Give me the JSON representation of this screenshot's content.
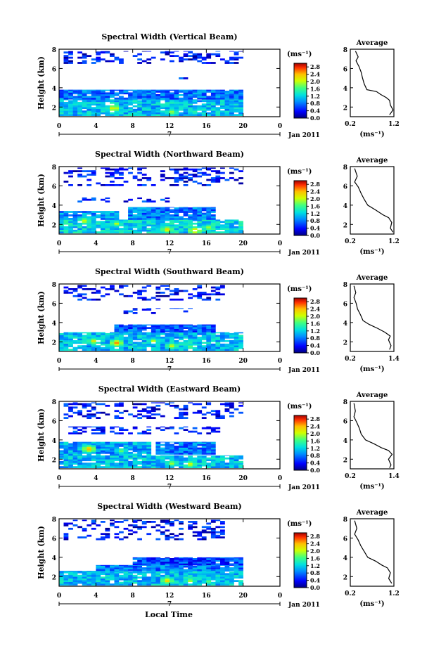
{
  "xlabel": "Local Time",
  "chart_data": [
    {
      "type": "heatmap",
      "title": "Spectral Width (Vertical Beam)",
      "ylabel": "Height (km)",
      "xlim": [
        0,
        24
      ],
      "ylim": [
        1,
        8
      ],
      "x_ticks": [
        "0",
        "4",
        "8",
        "12",
        "16",
        "20",
        "0"
      ],
      "x_tick_values": [
        0,
        4,
        8,
        12,
        16,
        20,
        24
      ],
      "y_ticks": [
        "2",
        "4",
        "6",
        "8"
      ],
      "date_label": "7",
      "date_suffix": "Jan 2011",
      "colorbar": {
        "label": "(ms⁻¹)",
        "ticks": [
          "0.0",
          "0.4",
          "0.8",
          "1.2",
          "1.6",
          "2.0",
          "2.4",
          "2.8"
        ],
        "range": [
          0,
          3.0
        ]
      },
      "layers": [
        {
          "x": [
            0,
            20
          ],
          "y": [
            1.1,
            2.8
          ],
          "v": 1.1
        },
        {
          "x": [
            0,
            20
          ],
          "y": [
            2.8,
            3.8
          ],
          "v": 0.8
        },
        {
          "x": [
            0.5,
            20
          ],
          "y": [
            6.5,
            7.8
          ],
          "v": 0.4,
          "sparse": true
        },
        {
          "x": [
            13,
            14.5
          ],
          "y": [
            4.9,
            5.2
          ],
          "v": 0.5,
          "sparse": true
        }
      ],
      "hotspots": [
        [
          5.7,
          1.8,
          2.4
        ],
        [
          12,
          1.4,
          2.0
        ],
        [
          14.5,
          1.4,
          1.6
        ],
        [
          8,
          1.2,
          1.4
        ]
      ],
      "profile": {
        "title": "Average",
        "xlabel": "(ms⁻¹)",
        "xlim": [
          0.2,
          1.2
        ],
        "x_ticks": [
          "0.2",
          "1.2"
        ],
        "y_ticks": [
          "2",
          "4",
          "6",
          "8"
        ],
        "ylim": [
          1,
          8
        ],
        "points": [
          [
            0.32,
            7.8
          ],
          [
            0.38,
            7.2
          ],
          [
            0.33,
            6.8
          ],
          [
            0.4,
            6.2
          ],
          [
            0.45,
            5.6
          ],
          [
            0.48,
            5.0
          ],
          [
            0.52,
            4.4
          ],
          [
            0.58,
            3.8
          ],
          [
            0.8,
            3.6
          ],
          [
            0.9,
            3.3
          ],
          [
            1.02,
            3.0
          ],
          [
            1.1,
            2.7
          ],
          [
            1.12,
            2.2
          ],
          [
            1.18,
            1.7
          ],
          [
            1.1,
            1.2
          ]
        ]
      }
    },
    {
      "type": "heatmap",
      "title": "Spectral Width (Northward Beam)",
      "ylabel": "Height (km)",
      "xlim": [
        0,
        24
      ],
      "ylim": [
        1,
        8
      ],
      "x_ticks": [
        "0",
        "4",
        "8",
        "12",
        "16",
        "20",
        "0"
      ],
      "x_tick_values": [
        0,
        4,
        8,
        12,
        16,
        20,
        24
      ],
      "y_ticks": [
        "2",
        "4",
        "6",
        "8"
      ],
      "date_label": "7",
      "date_suffix": "Jan 2011",
      "colorbar": {
        "label": "(ms⁻¹)",
        "ticks": [
          "0.0",
          "0.4",
          "0.8",
          "1.2",
          "1.6",
          "2.0",
          "2.4",
          "2.8"
        ],
        "range": [
          0,
          3.0
        ]
      },
      "layers": [
        {
          "x": [
            0,
            20
          ],
          "y": [
            1.1,
            2.5
          ],
          "v": 1.2
        },
        {
          "x": [
            0,
            6.5
          ],
          "y": [
            2.5,
            3.4
          ],
          "v": 0.9
        },
        {
          "x": [
            7.5,
            17
          ],
          "y": [
            2.5,
            3.8
          ],
          "v": 0.8
        },
        {
          "x": [
            0.5,
            20
          ],
          "y": [
            6.0,
            7.9
          ],
          "v": 0.4,
          "sparse": true
        },
        {
          "x": [
            2,
            12
          ],
          "y": [
            4.3,
            4.8
          ],
          "v": 0.5,
          "sparse": true
        }
      ],
      "hotspots": [
        [
          2.5,
          2.3,
          2.2
        ],
        [
          6,
          2.0,
          2.0
        ],
        [
          11.5,
          1.4,
          2.4
        ],
        [
          14.5,
          1.3,
          2.6
        ],
        [
          16,
          1.6,
          2.0
        ]
      ],
      "profile": {
        "title": "Average",
        "xlabel": "(ms⁻¹)",
        "xlim": [
          0.2,
          1.2
        ],
        "x_ticks": [
          "0.2",
          "1.2"
        ],
        "y_ticks": [
          "2",
          "4",
          "6",
          "8"
        ],
        "ylim": [
          1,
          8
        ],
        "points": [
          [
            0.3,
            7.8
          ],
          [
            0.36,
            7.0
          ],
          [
            0.3,
            6.4
          ],
          [
            0.38,
            5.9
          ],
          [
            0.45,
            5.2
          ],
          [
            0.52,
            4.6
          ],
          [
            0.6,
            4.0
          ],
          [
            0.78,
            3.5
          ],
          [
            0.95,
            3.0
          ],
          [
            1.08,
            2.7
          ],
          [
            1.15,
            2.2
          ],
          [
            1.12,
            1.6
          ],
          [
            1.18,
            1.2
          ]
        ]
      }
    },
    {
      "type": "heatmap",
      "title": "Spectral Width (Southward Beam)",
      "ylabel": "Height (km)",
      "xlim": [
        0,
        24
      ],
      "ylim": [
        1,
        8
      ],
      "x_ticks": [
        "0",
        "4",
        "8",
        "12",
        "16",
        "20",
        "0"
      ],
      "x_tick_values": [
        0,
        4,
        8,
        12,
        16,
        20,
        24
      ],
      "y_ticks": [
        "2",
        "4",
        "6",
        "8"
      ],
      "date_label": "7",
      "date_suffix": "Jan 2011",
      "colorbar": {
        "label": "(ms⁻¹)",
        "ticks": [
          "0.0",
          "0.4",
          "0.8",
          "1.2",
          "1.6",
          "2.0",
          "2.4",
          "2.8"
        ],
        "range": [
          0,
          3.0
        ]
      },
      "layers": [
        {
          "x": [
            0,
            20
          ],
          "y": [
            1.1,
            3.0
          ],
          "v": 1.1
        },
        {
          "x": [
            6,
            17
          ],
          "y": [
            3.0,
            3.8
          ],
          "v": 0.7
        },
        {
          "x": [
            0.5,
            18
          ],
          "y": [
            6.3,
            7.9
          ],
          "v": 0.4,
          "sparse": true
        },
        {
          "x": [
            7,
            15
          ],
          "y": [
            4.9,
            5.5
          ],
          "v": 0.5,
          "sparse": true
        }
      ],
      "hotspots": [
        [
          3.5,
          2.0,
          2.2
        ],
        [
          6,
          1.8,
          2.6
        ],
        [
          10,
          2.0,
          2.0
        ],
        [
          12,
          1.5,
          2.2
        ],
        [
          14,
          1.4,
          1.8
        ]
      ],
      "profile": {
        "title": "Average",
        "xlabel": "(ms⁻¹)",
        "xlim": [
          0.2,
          1.4
        ],
        "x_ticks": [
          "0.2",
          "1.4"
        ],
        "y_ticks": [
          "2",
          "4",
          "6",
          "8"
        ],
        "ylim": [
          1,
          8
        ],
        "points": [
          [
            0.3,
            7.8
          ],
          [
            0.35,
            7.1
          ],
          [
            0.3,
            6.6
          ],
          [
            0.36,
            6.0
          ],
          [
            0.4,
            5.4
          ],
          [
            0.48,
            4.8
          ],
          [
            0.55,
            4.2
          ],
          [
            0.72,
            3.8
          ],
          [
            0.95,
            3.4
          ],
          [
            1.15,
            3.0
          ],
          [
            1.3,
            2.6
          ],
          [
            1.25,
            2.2
          ],
          [
            1.32,
            1.6
          ],
          [
            1.28,
            1.2
          ]
        ]
      }
    },
    {
      "type": "heatmap",
      "title": "Spectral Width (Eastward Beam)",
      "ylabel": "Height (km)",
      "xlim": [
        0,
        24
      ],
      "ylim": [
        1,
        8
      ],
      "x_ticks": [
        "0",
        "4",
        "8",
        "12",
        "16",
        "20",
        "0"
      ],
      "x_tick_values": [
        0,
        4,
        8,
        12,
        16,
        20,
        24
      ],
      "y_ticks": [
        "2",
        "4",
        "6",
        "8"
      ],
      "date_label": "7",
      "date_suffix": "Jan 2011",
      "colorbar": {
        "label": "(ms⁻¹)",
        "ticks": [
          "0.0",
          "0.4",
          "0.8",
          "1.2",
          "1.6",
          "2.0",
          "2.4",
          "2.8"
        ],
        "range": [
          0,
          3.0
        ]
      },
      "layers": [
        {
          "x": [
            0,
            20
          ],
          "y": [
            1.1,
            2.4
          ],
          "v": 1.1
        },
        {
          "x": [
            0,
            10
          ],
          "y": [
            2.4,
            3.8
          ],
          "v": 1.0
        },
        {
          "x": [
            10.5,
            17
          ],
          "y": [
            2.5,
            3.8
          ],
          "v": 0.8
        },
        {
          "x": [
            0.5,
            20
          ],
          "y": [
            6.2,
            7.9
          ],
          "v": 0.4,
          "sparse": true
        },
        {
          "x": [
            1,
            18
          ],
          "y": [
            4.6,
            5.4
          ],
          "v": 0.5,
          "sparse": true
        }
      ],
      "hotspots": [
        [
          3,
          3.0,
          2.6
        ],
        [
          6.5,
          2.8,
          1.8
        ],
        [
          12,
          1.5,
          2.0
        ],
        [
          14,
          1.4,
          2.2
        ]
      ],
      "profile": {
        "title": "Average",
        "xlabel": "(ms⁻¹)",
        "xlim": [
          0.2,
          1.4
        ],
        "x_ticks": [
          "0.2",
          "1.4"
        ],
        "y_ticks": [
          "2",
          "4",
          "6",
          "8"
        ],
        "ylim": [
          1,
          8
        ],
        "points": [
          [
            0.3,
            7.8
          ],
          [
            0.34,
            7.0
          ],
          [
            0.3,
            6.4
          ],
          [
            0.38,
            5.8
          ],
          [
            0.45,
            5.2
          ],
          [
            0.5,
            4.6
          ],
          [
            0.62,
            4.0
          ],
          [
            0.85,
            3.6
          ],
          [
            1.05,
            3.2
          ],
          [
            1.25,
            2.9
          ],
          [
            1.35,
            2.5
          ],
          [
            1.25,
            2.0
          ],
          [
            1.32,
            1.4
          ],
          [
            1.28,
            1.1
          ]
        ]
      }
    },
    {
      "type": "heatmap",
      "title": "Spectral Width (Westward Beam)",
      "ylabel": "Height (km)",
      "xlim": [
        0,
        24
      ],
      "ylim": [
        1,
        8
      ],
      "x_ticks": [
        "0",
        "4",
        "8",
        "12",
        "16",
        "20",
        "0"
      ],
      "x_tick_values": [
        0,
        4,
        8,
        12,
        16,
        20,
        24
      ],
      "y_ticks": [
        "2",
        "4",
        "6",
        "8"
      ],
      "date_label": "7",
      "date_suffix": "Jan 2011",
      "colorbar": {
        "label": "(ms⁻¹)",
        "ticks": [
          "0.0",
          "0.4",
          "0.8",
          "1.2",
          "1.6",
          "2.0",
          "2.4",
          "2.8"
        ],
        "range": [
          0,
          3.0
        ]
      },
      "layers": [
        {
          "x": [
            0,
            20
          ],
          "y": [
            1.1,
            2.6
          ],
          "v": 1.1
        },
        {
          "x": [
            4,
            20
          ],
          "y": [
            2.6,
            3.2
          ],
          "v": 0.8
        },
        {
          "x": [
            8,
            20
          ],
          "y": [
            3.2,
            4.0
          ],
          "v": 0.6
        },
        {
          "x": [
            0.5,
            18
          ],
          "y": [
            5.8,
            7.9
          ],
          "v": 0.4,
          "sparse": true
        }
      ],
      "hotspots": [
        [
          11.5,
          1.5,
          2.4
        ],
        [
          14,
          1.5,
          2.0
        ],
        [
          16,
          1.4,
          1.8
        ]
      ],
      "profile": {
        "title": "Average",
        "xlabel": "(ms⁻¹)",
        "xlim": [
          0.2,
          1.2
        ],
        "x_ticks": [
          "0.2",
          "1.2"
        ],
        "y_ticks": [
          "2",
          "4",
          "6",
          "8"
        ],
        "ylim": [
          1,
          8
        ],
        "points": [
          [
            0.3,
            7.8
          ],
          [
            0.35,
            7.0
          ],
          [
            0.3,
            6.4
          ],
          [
            0.38,
            5.8
          ],
          [
            0.44,
            5.2
          ],
          [
            0.52,
            4.6
          ],
          [
            0.6,
            4.0
          ],
          [
            0.78,
            3.6
          ],
          [
            0.92,
            3.2
          ],
          [
            1.05,
            2.9
          ],
          [
            1.12,
            2.4
          ],
          [
            1.08,
            1.8
          ],
          [
            1.15,
            1.3
          ]
        ]
      }
    }
  ]
}
